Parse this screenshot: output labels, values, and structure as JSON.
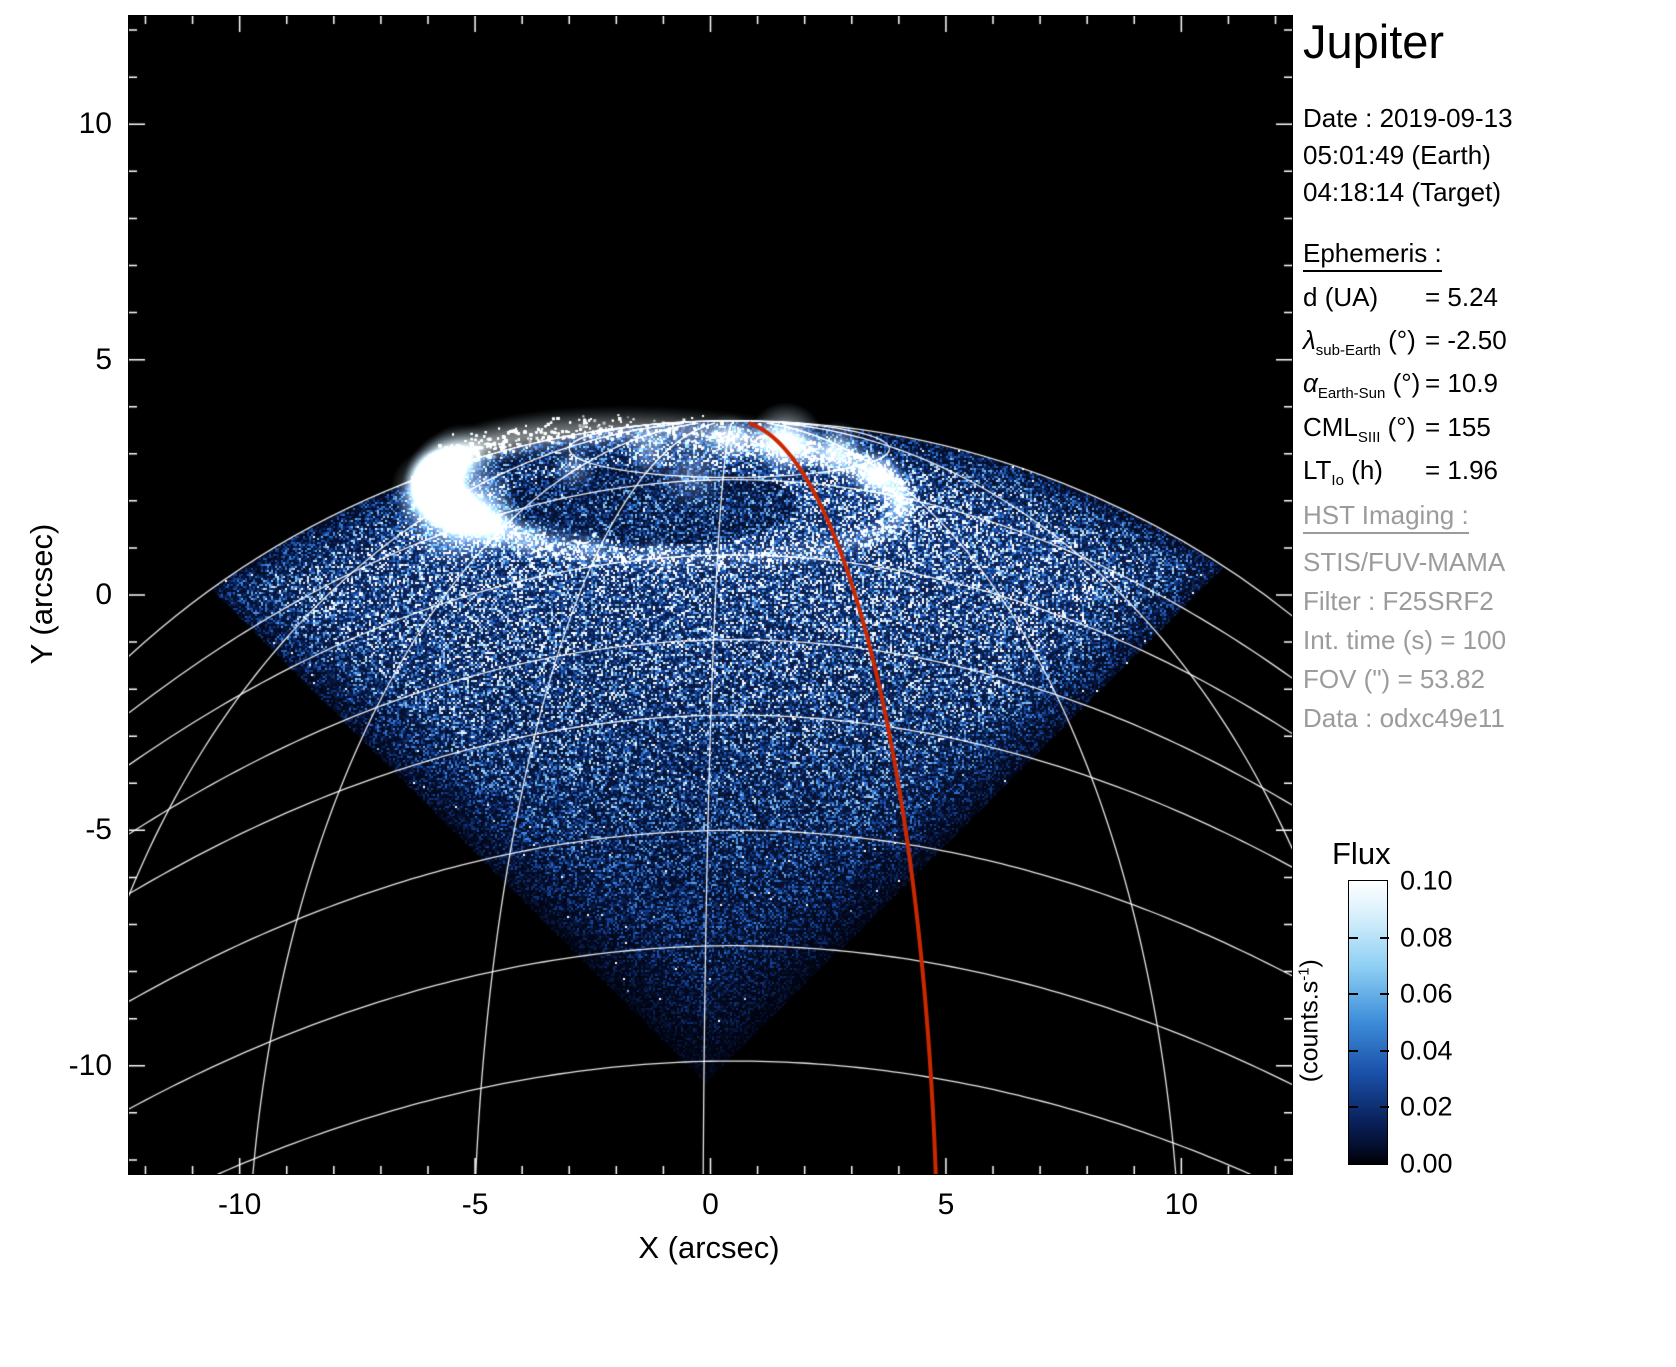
{
  "title": "Jupiter",
  "observation": {
    "date": "Date : 2019-09-13",
    "time_earth": "05:01:49 (Earth)",
    "time_target": "04:18:14 (Target)"
  },
  "ephemeris": {
    "heading": "Ephemeris :",
    "rows": [
      {
        "sym": "d",
        "sub": "",
        "post": " (UA)",
        "val": "= 5.24"
      },
      {
        "sym": "λ",
        "sub": "sub-Earth",
        "post": " (°)",
        "val": "= -2.50"
      },
      {
        "sym": "α",
        "sub": "Earth-Sun",
        "post": " (°)",
        "val": "= 10.9"
      },
      {
        "sym": "CML",
        "sub": "SIII",
        "post": " (°)",
        "val": "= 155"
      },
      {
        "sym": "LT",
        "sub": "Io",
        "post": " (h)",
        "val": "= 1.96"
      }
    ]
  },
  "hst": {
    "heading": "HST Imaging :",
    "lines": [
      "STIS/FUV-MAMA",
      "Filter : F25SRF2",
      "Int. time (s) = 100",
      "FOV (\") = 53.82",
      "Data : odxc49e11"
    ]
  },
  "colorbar": {
    "title": "Flux",
    "unit_pre": "(counts.s",
    "unit_sup": "-1",
    "unit_post": ")",
    "tick_labels": [
      "0.10",
      "0.08",
      "0.06",
      "0.04",
      "0.02",
      "0.00"
    ],
    "gradient": [
      [
        0,
        "#ffffff"
      ],
      [
        0.12,
        "#d8f0fc"
      ],
      [
        0.3,
        "#8fd0f4"
      ],
      [
        0.5,
        "#3c8cd8"
      ],
      [
        0.68,
        "#1a50a8"
      ],
      [
        0.84,
        "#0a2460"
      ],
      [
        0.95,
        "#030b28"
      ],
      [
        1,
        "#000000"
      ]
    ]
  },
  "chart_data": {
    "type": "heatmap",
    "title": "Jupiter",
    "xlabel": "X (arcsec)",
    "ylabel": "Y (arcsec)",
    "xlim": [
      -12.35,
      12.35
    ],
    "ylim": [
      -12.3,
      12.3
    ],
    "xticks": [
      -10,
      -5,
      0,
      5,
      10
    ],
    "yticks": [
      -10,
      -5,
      0,
      5,
      10
    ],
    "flux_range": [
      0.0,
      0.1
    ],
    "flux_ticks": [
      0.0,
      0.02,
      0.04,
      0.06,
      0.08,
      0.1
    ],
    "description": "Far-ultraviolet HST/STIS image of Jupiter's northern aurora. A diamond-shaped (45-degree rotated square) detector field of view is filled with blue photon noise over the planetary disk, a bright white auroral oval sits near the top, white latitude/longitude graticule arcs span the disk, and a red meridian curve crosses the aurora down to the bottom of the frame.",
    "features": {
      "fov_diamond": {
        "cx": -0.1,
        "cy": 0.7,
        "half_diagonal": 11.1
      },
      "disk": {
        "cx": 0.5,
        "cy": -15.3,
        "radius": 19.0
      },
      "aurora_oval": {
        "cx": -0.9,
        "cy": 2.15,
        "a": 5.0,
        "b": 1.35,
        "rot_deg": -3
      },
      "dim_interior": {
        "cx": -1.3,
        "cy": 1.9,
        "a": 3.2,
        "b": 0.85
      },
      "aurora_blobs": [
        [
          -5.4,
          1.9,
          1.3,
          0.95
        ],
        [
          -5.95,
          2.25,
          0.85,
          0.7
        ],
        [
          -4.6,
          1.5,
          0.7,
          0.55
        ],
        [
          1.6,
          3.3,
          0.8,
          0.85
        ],
        [
          2.7,
          3.1,
          0.6,
          0.6
        ],
        [
          0.4,
          3.3,
          0.55,
          0.5
        ],
        [
          -1.3,
          3.05,
          0.55,
          0.4
        ],
        [
          -2.9,
          2.7,
          0.5,
          0.35
        ],
        [
          3.5,
          2.55,
          0.6,
          0.55
        ],
        [
          4.0,
          2.0,
          0.45,
          0.4
        ],
        [
          -0.4,
          2.6,
          0.8,
          0.3
        ],
        [
          -3.9,
          1.15,
          0.5,
          0.3
        ],
        [
          -2.5,
          0.95,
          0.45,
          0.25
        ],
        [
          -1.1,
          0.9,
          0.4,
          0.2
        ]
      ],
      "latitude_arcs": {
        "peak_x": 0.5,
        "peaks_y": [
          2.45,
          0.85,
          -0.95,
          -2.55,
          -5.0,
          -7.45,
          -9.9
        ],
        "curvatures": [
          0.03,
          0.027,
          0.025,
          0.023,
          0.022,
          0.021,
          0.02
        ]
      },
      "polar_oval": {
        "cx": 0.4,
        "cy": 3.1,
        "a": 3.4,
        "b": 0.6
      },
      "meridians_deg": [
        -50,
        -33,
        -17,
        -2,
        30,
        47
      ],
      "red_meridian_deg": 13.2,
      "colormap": [
        [
          0,
          "#000008"
        ],
        [
          0.15,
          "#081a46"
        ],
        [
          0.35,
          "#1446a0"
        ],
        [
          0.55,
          "#3c82dc"
        ],
        [
          0.75,
          "#8cc8f0"
        ],
        [
          0.9,
          "#dceefa"
        ],
        [
          1,
          "#ffffff"
        ]
      ],
      "colors": {
        "graticule": "#ffffff",
        "red_line": "#cc2800",
        "background": "#000000"
      }
    }
  }
}
